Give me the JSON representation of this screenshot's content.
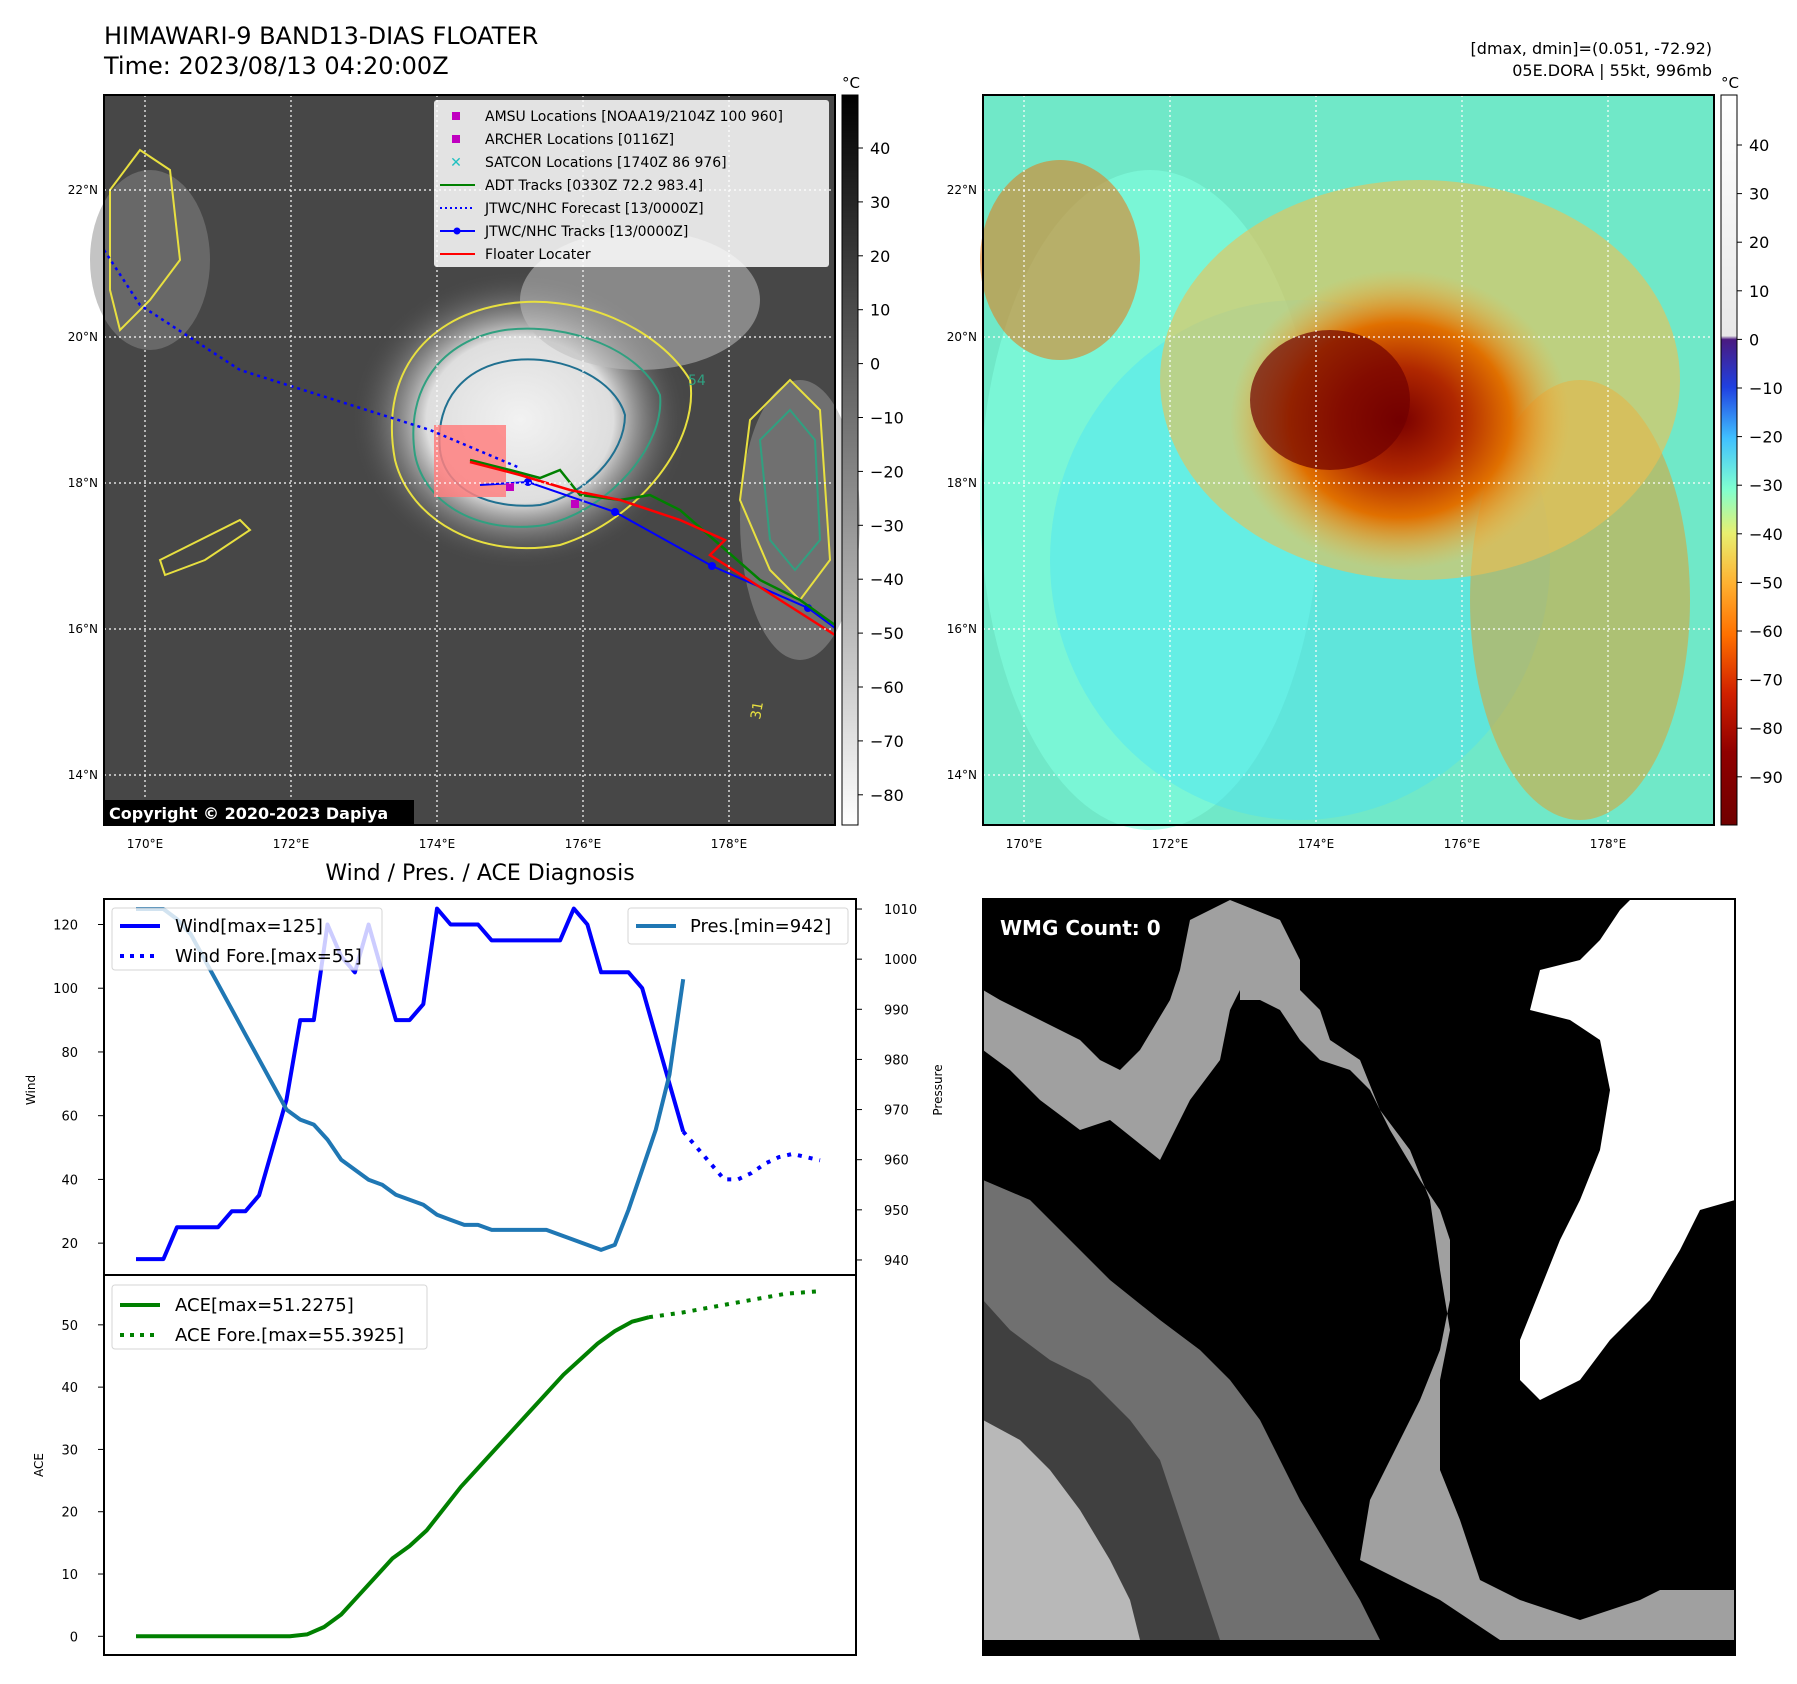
{
  "header": {
    "title_line1": "HIMAWARI-9 BAND13-DIAS FLOATER",
    "title_line2": "Time: 2023/08/13 04:20:00Z",
    "stats_line1": "[dmax, dmin]=(0.051, -72.92)",
    "stats_line2": "05E.DORA | 55kt, 996mb"
  },
  "map": {
    "lat_labels": [
      "22°N",
      "20°N",
      "18°N",
      "16°N",
      "14°N"
    ],
    "lon_labels": [
      "170°E",
      "172°E",
      "174°E",
      "176°E",
      "178°E"
    ],
    "copyright": "Copyright © 2020-2023 Dapiya",
    "legend": [
      {
        "label": "AMSU Locations [NOAA19/2104Z 100 960]",
        "color": "#c000c0",
        "icon": "square-marker"
      },
      {
        "label": "ARCHER Locations [0116Z]",
        "color": "#c000c0",
        "icon": "square-marker"
      },
      {
        "label": "SATCON Locations [1740Z 86 976]",
        "color": "#20c0c0",
        "icon": "x-marker"
      },
      {
        "label": "ADT Tracks [0330Z 72.2 983.4]",
        "color": "#008000",
        "icon": "solid-line"
      },
      {
        "label": "JTWC/NHC Forecast [13/0000Z]",
        "color": "#0000ff",
        "icon": "dotted-line"
      },
      {
        "label": "JTWC/NHC Tracks [13/0000Z]",
        "color": "#0000ff",
        "icon": "line-with-dot"
      },
      {
        "label": "Floater Locater",
        "color": "#ff0000",
        "icon": "solid-line"
      }
    ],
    "contour_labels": [
      "54",
      "31"
    ],
    "gray_colorbar": {
      "unit": "°C",
      "ticks": [
        "40",
        "30",
        "20",
        "10",
        "0",
        "−10",
        "−20",
        "−30",
        "−40",
        "−50",
        "−60",
        "−70",
        "−80"
      ]
    },
    "color_colorbar": {
      "unit": "°C",
      "ticks": [
        "40",
        "30",
        "20",
        "10",
        "0",
        "−10",
        "−20",
        "−30",
        "−40",
        "−50",
        "−60",
        "−70",
        "−80",
        "−90"
      ]
    }
  },
  "wmg": {
    "label": "WMG Count: 0"
  },
  "colors": {
    "wind": "#0000ff",
    "pressure": "#1f77b4",
    "ace": "#008000",
    "floater": "#ff0000"
  },
  "chart_data": [
    {
      "type": "line",
      "title": "Wind / Pres. / ACE Diagnosis",
      "ylabel": "Wind",
      "y2label": "Pressure",
      "ylim": [
        10,
        128
      ],
      "y2lim": [
        937,
        1012
      ],
      "yticks": [
        20,
        40,
        60,
        80,
        100,
        120
      ],
      "y2ticks": [
        940,
        950,
        960,
        970,
        980,
        990,
        1000,
        1010
      ],
      "series": [
        {
          "name": "Wind[max=125]",
          "axis": "left",
          "style": "solid",
          "values": [
            [
              0,
              15
            ],
            [
              1,
              15
            ],
            [
              2,
              15
            ],
            [
              3,
              25
            ],
            [
              4,
              25
            ],
            [
              5,
              25
            ],
            [
              6,
              25
            ],
            [
              7,
              30
            ],
            [
              8,
              30
            ],
            [
              9,
              35
            ],
            [
              10,
              50
            ],
            [
              11,
              65
            ],
            [
              12,
              90
            ],
            [
              13,
              90
            ],
            [
              14,
              120
            ],
            [
              15,
              110
            ],
            [
              16,
              105
            ],
            [
              17,
              120
            ],
            [
              18,
              105
            ],
            [
              19,
              90
            ],
            [
              20,
              90
            ],
            [
              21,
              95
            ],
            [
              22,
              125
            ],
            [
              23,
              120
            ],
            [
              24,
              120
            ],
            [
              25,
              120
            ],
            [
              26,
              115
            ],
            [
              27,
              115
            ],
            [
              28,
              115
            ],
            [
              29,
              115
            ],
            [
              30,
              115
            ],
            [
              31,
              115
            ],
            [
              32,
              125
            ],
            [
              33,
              120
            ],
            [
              34,
              105
            ],
            [
              35,
              105
            ],
            [
              36,
              105
            ],
            [
              37,
              100
            ],
            [
              38,
              85
            ],
            [
              39,
              70
            ],
            [
              40,
              55
            ]
          ]
        },
        {
          "name": "Wind Fore.[max=55]",
          "axis": "left",
          "style": "dotted",
          "values": [
            [
              40,
              55
            ],
            [
              41,
              50
            ],
            [
              42,
              45
            ],
            [
              43,
              40
            ],
            [
              44,
              40
            ],
            [
              45,
              42
            ],
            [
              46,
              45
            ],
            [
              47,
              47
            ],
            [
              48,
              48
            ],
            [
              49,
              47
            ],
            [
              50,
              46
            ]
          ]
        },
        {
          "name": "Pres.[min=942]",
          "axis": "right",
          "style": "solid",
          "values": [
            [
              0,
              1010
            ],
            [
              1,
              1010
            ],
            [
              2,
              1010
            ],
            [
              3,
              1008
            ],
            [
              4,
              1005
            ],
            [
              5,
              1000
            ],
            [
              6,
              995
            ],
            [
              7,
              990
            ],
            [
              8,
              985
            ],
            [
              9,
              980
            ],
            [
              10,
              975
            ],
            [
              11,
              970
            ],
            [
              12,
              968
            ],
            [
              13,
              967
            ],
            [
              14,
              964
            ],
            [
              15,
              960
            ],
            [
              16,
              958
            ],
            [
              17,
              956
            ],
            [
              18,
              955
            ],
            [
              19,
              953
            ],
            [
              20,
              952
            ],
            [
              21,
              951
            ],
            [
              22,
              949
            ],
            [
              23,
              948
            ],
            [
              24,
              947
            ],
            [
              25,
              947
            ],
            [
              26,
              946
            ],
            [
              27,
              946
            ],
            [
              28,
              946
            ],
            [
              29,
              946
            ],
            [
              30,
              946
            ],
            [
              31,
              945
            ],
            [
              32,
              944
            ],
            [
              33,
              943
            ],
            [
              34,
              942
            ],
            [
              35,
              943
            ],
            [
              36,
              950
            ],
            [
              37,
              958
            ],
            [
              38,
              966
            ],
            [
              39,
              977
            ],
            [
              40,
              996
            ]
          ]
        },
        {
          "name": "ACE[max=51.2275]",
          "axis": "left",
          "style": "solid",
          "values": [
            [
              0,
              0
            ],
            [
              1,
              0
            ],
            [
              2,
              0
            ],
            [
              3,
              0
            ],
            [
              4,
              0
            ],
            [
              5,
              0
            ],
            [
              6,
              0
            ],
            [
              7,
              0
            ],
            [
              8,
              0
            ],
            [
              9,
              0
            ],
            [
              10,
              0.3
            ],
            [
              11,
              1.5
            ],
            [
              12,
              3.5
            ],
            [
              13,
              6.5
            ],
            [
              14,
              9.5
            ],
            [
              15,
              12.5
            ],
            [
              16,
              14.5
            ],
            [
              17,
              17
            ],
            [
              18,
              20.5
            ],
            [
              19,
              24
            ],
            [
              20,
              27
            ],
            [
              21,
              30
            ],
            [
              22,
              33
            ],
            [
              23,
              36
            ],
            [
              24,
              39
            ],
            [
              25,
              42
            ],
            [
              26,
              44.5
            ],
            [
              27,
              47
            ],
            [
              28,
              49
            ],
            [
              29,
              50.5
            ],
            [
              30,
              51.2275
            ]
          ]
        },
        {
          "name": "ACE Fore.[max=55.3925]",
          "axis": "left",
          "style": "dotted",
          "values": [
            [
              30,
              51.2275
            ],
            [
              32,
              52
            ],
            [
              34,
              53
            ],
            [
              36,
              54
            ],
            [
              38,
              55
            ],
            [
              40,
              55.3925
            ]
          ]
        }
      ],
      "ace_panel": {
        "ylabel": "ACE",
        "ylim": [
          -3,
          58
        ],
        "yticks": [
          0,
          10,
          20,
          30,
          40,
          50
        ]
      }
    }
  ]
}
